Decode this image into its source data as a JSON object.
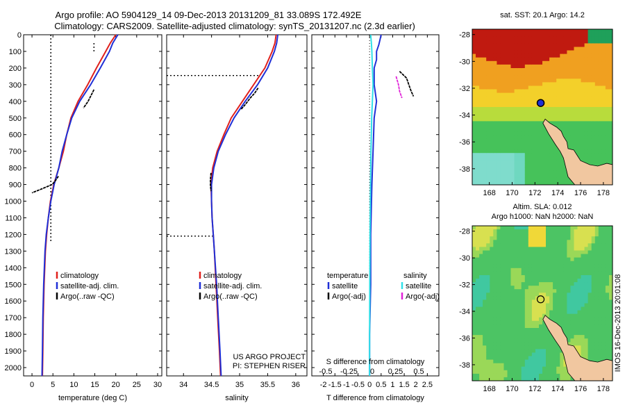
{
  "title": {
    "line1": "Argo profile: AO 5904129_14 09-Dec-2013 20131209_81 33.089S 172.492E",
    "line2": "Climatology: CARS2009. Satellite-adjusted climatology: synTS_20131207.nc (2.3d earlier)"
  },
  "side_stamp": "IMOS 16-Dec-2013 20:01:08",
  "colors": {
    "climatology": "#e0201c",
    "satellite": "#1f2fd6",
    "argo": "#000000",
    "cyan": "#2fe0e8",
    "magenta": "#e020d8",
    "land": "#f1c7a0"
  },
  "chart_data": [
    {
      "type": "line",
      "panel": "temperature",
      "xlabel": "temperature (deg C)",
      "xlim": [
        -2,
        31
      ],
      "ylim": [
        2050,
        0
      ],
      "xticks": [
        0,
        5,
        10,
        15,
        20,
        25,
        30
      ],
      "yticks": [
        0,
        100,
        200,
        300,
        400,
        500,
        600,
        700,
        800,
        900,
        1000,
        1100,
        1200,
        1300,
        1400,
        1500,
        1600,
        1700,
        1800,
        1900,
        2000
      ],
      "legend": [
        "climatology",
        "satellite-adj. clim.",
        "Argo(..raw -QC)"
      ],
      "series": [
        {
          "name": "climatology",
          "depth": [
            0,
            50,
            100,
            200,
            300,
            400,
            500,
            600,
            700,
            800,
            900,
            1000,
            1100,
            1200,
            1300,
            1500,
            1700,
            1900,
            2050
          ],
          "values": [
            20.0,
            18.7,
            17.6,
            15.4,
            13.3,
            11.0,
            9.3,
            8.3,
            7.5,
            6.4,
            5.2,
            4.4,
            3.9,
            3.5,
            3.2,
            2.9,
            2.7,
            2.6,
            2.5
          ]
        },
        {
          "name": "satellite-adj. clim.",
          "depth": [
            0,
            50,
            100,
            200,
            300,
            400,
            500,
            600,
            700,
            800,
            900,
            1000,
            1100,
            1200,
            1300,
            1500,
            1700,
            1900,
            2050
          ],
          "values": [
            20.5,
            19.3,
            18.5,
            16.3,
            14.0,
            11.4,
            9.5,
            8.3,
            7.2,
            6.4,
            5.3,
            4.5,
            3.9,
            3.4,
            3.1,
            2.8,
            2.6,
            2.5,
            2.4
          ]
        },
        {
          "name": "Argo(..raw -QC)",
          "depth": [
            330,
            360,
            400,
            440
          ],
          "values": [
            14.8,
            14.2,
            13.4,
            12.3
          ]
        },
        {
          "name": "Argo(..raw -QC)",
          "depth": [
            850,
            880,
            900,
            930,
            950
          ],
          "values": [
            6.3,
            5.5,
            4.8,
            2.0,
            0.0
          ]
        }
      ],
      "reference_lines": {
        "vertical_x": [
          4.5,
          14.8
        ],
        "vertical_depth_top": [
          0,
          50
        ]
      }
    },
    {
      "type": "line",
      "panel": "salinity",
      "xlabel": "salinity",
      "xlim": [
        33.7,
        36.2
      ],
      "ylim": [
        2050,
        0
      ],
      "xticks": [
        34,
        34.5,
        35,
        35.5,
        36
      ],
      "legend": [
        "climatology",
        "satellite-adj. clim.",
        "Argo(..raw -QC)"
      ],
      "annotation": [
        "US ARGO PROJECT",
        "PI: STEPHEN RISER"
      ],
      "series": [
        {
          "name": "climatology",
          "depth": [
            0,
            50,
            100,
            200,
            300,
            400,
            500,
            600,
            700,
            800,
            900,
            1000,
            1100,
            1200,
            1300,
            1500,
            1700,
            1900,
            2050
          ],
          "values": [
            35.65,
            35.63,
            35.58,
            35.45,
            35.25,
            35.05,
            34.85,
            34.72,
            34.6,
            34.52,
            34.49,
            34.5,
            34.51,
            34.53,
            34.55,
            34.58,
            34.61,
            34.64,
            34.66
          ]
        },
        {
          "name": "satellite-adj. clim.",
          "depth": [
            0,
            50,
            100,
            200,
            300,
            400,
            500,
            600,
            700,
            800,
            900,
            1000,
            1100,
            1200,
            1300,
            1500,
            1700,
            1900,
            2050
          ],
          "values": [
            35.68,
            35.66,
            35.62,
            35.5,
            35.32,
            35.1,
            34.9,
            34.75,
            34.62,
            34.54,
            34.5,
            34.5,
            34.51,
            34.53,
            34.55,
            34.59,
            34.62,
            34.65,
            34.67
          ]
        },
        {
          "name": "Argo(..raw -QC)",
          "depth": [
            320,
            350,
            380,
            420,
            450
          ],
          "values": [
            35.33,
            35.27,
            35.19,
            35.1,
            35.02
          ]
        },
        {
          "name": "Argo(..raw -QC)",
          "depth": [
            830,
            870,
            900,
            940
          ],
          "values": [
            34.49,
            34.48,
            34.48,
            34.49
          ]
        }
      ],
      "reference_lines": {
        "horizontal": [
          {
            "depth": 245,
            "x_from": 33.7,
            "x_to": 35.35
          },
          {
            "depth": 1210,
            "x_from": 33.7,
            "x_to": 34.52
          }
        ]
      }
    },
    {
      "type": "line",
      "panel": "difference",
      "xlabel": "T difference from climatology",
      "xlabel_top": "S difference from climatology",
      "xlim": [
        -2.5,
        3.0
      ],
      "ylim": [
        2050,
        0
      ],
      "xticks": [
        -2,
        -1.5,
        -1,
        -0.5,
        0,
        0.5,
        1,
        1.5,
        2,
        2.5
      ],
      "xticklabels": [
        "-2",
        "-1.5",
        "-1",
        "-0.5",
        "0",
        "0.5",
        "1",
        "1.5",
        "2",
        "2.5"
      ],
      "sticks_top": [
        "-0.5",
        "-0.25",
        "0",
        "0.25",
        "0.5"
      ],
      "legend_left": {
        "title": "temperature",
        "items": [
          "satellite",
          "Argo(-adj)"
        ]
      },
      "legend_right": {
        "title": "salinity",
        "items": [
          "satellite",
          "Argo(-adj)"
        ]
      },
      "series": [
        {
          "name": "T satellite",
          "depth": [
            0,
            30,
            60,
            100,
            150,
            200,
            300,
            400,
            500,
            700,
            900,
            1200,
            1500,
            1800,
            2050
          ],
          "values": [
            0.5,
            0.45,
            0.4,
            0.3,
            0.3,
            0.2,
            0.2,
            0.3,
            0.2,
            0.15,
            0.1,
            0.05,
            0.05,
            0.0,
            0.0
          ]
        },
        {
          "name": "S satellite",
          "depth": [
            0,
            50,
            100,
            200,
            300,
            400,
            500,
            700,
            900,
            1200,
            1500,
            1800,
            2050
          ],
          "values": [
            0.05,
            0.08,
            0.1,
            0.12,
            0.15,
            0.12,
            0.09,
            0.06,
            0.04,
            0.02,
            0.01,
            0.0,
            0.0
          ]
        },
        {
          "name": "T Argo(-adj)",
          "depth": [
            220,
            260,
            300,
            340,
            370
          ],
          "values": [
            1.3,
            1.6,
            1.7,
            1.8,
            1.9
          ]
        },
        {
          "name": "S Argo(-adj)",
          "depth": [
            250,
            300,
            340,
            380
          ],
          "values": [
            1.15,
            1.25,
            1.3,
            1.4
          ]
        }
      ]
    },
    {
      "type": "heatmap",
      "panel": "sst_map",
      "title": "sat. SST: 20.1  Argo: 14.2",
      "xticks": [
        "168",
        "170",
        "172",
        "174",
        "176",
        "178"
      ],
      "yticks": [
        "-28",
        "-30",
        "-32",
        "-34",
        "-36",
        "-38"
      ],
      "xlim": [
        166.5,
        178.8
      ],
      "ylim": [
        -39.2,
        -27.6
      ],
      "marker": {
        "lon": 172.5,
        "lat": -33.1
      }
    },
    {
      "type": "heatmap",
      "panel": "sla_map",
      "title": "Altim. SLA: 0.012",
      "subtitle": "Argo h1000: NaN h2000: NaN",
      "xticks": [
        "168",
        "170",
        "172",
        "174",
        "176",
        "178"
      ],
      "yticks": [
        "-28",
        "-30",
        "-32",
        "-34",
        "-36",
        "-38"
      ],
      "xlim": [
        166.5,
        178.8
      ],
      "ylim": [
        -39.2,
        -27.6
      ],
      "marker": {
        "lon": 172.5,
        "lat": -33.1
      }
    }
  ]
}
